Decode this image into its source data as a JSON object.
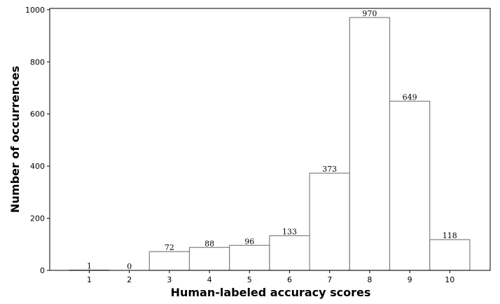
{
  "chart_data": {
    "type": "bar",
    "title": "",
    "xlabel": "Human-labeled accuracy scores",
    "ylabel": "Number of occurrences",
    "categories": [
      "1",
      "2",
      "3",
      "4",
      "5",
      "6",
      "7",
      "8",
      "9",
      "10"
    ],
    "values": [
      1,
      0,
      72,
      88,
      96,
      133,
      373,
      970,
      649,
      118
    ],
    "data_labels": [
      "1",
      "0",
      "72",
      "88",
      "96",
      "133",
      "373",
      "970",
      "649",
      "118"
    ],
    "ylim": [
      0,
      1000
    ],
    "yticks": [
      0,
      200,
      400,
      600,
      800,
      1000
    ],
    "grid": false,
    "legend": "none",
    "colors": {
      "bar_fill": "#ffffff",
      "bar_edge": "#808080",
      "axis": "#000000"
    }
  }
}
